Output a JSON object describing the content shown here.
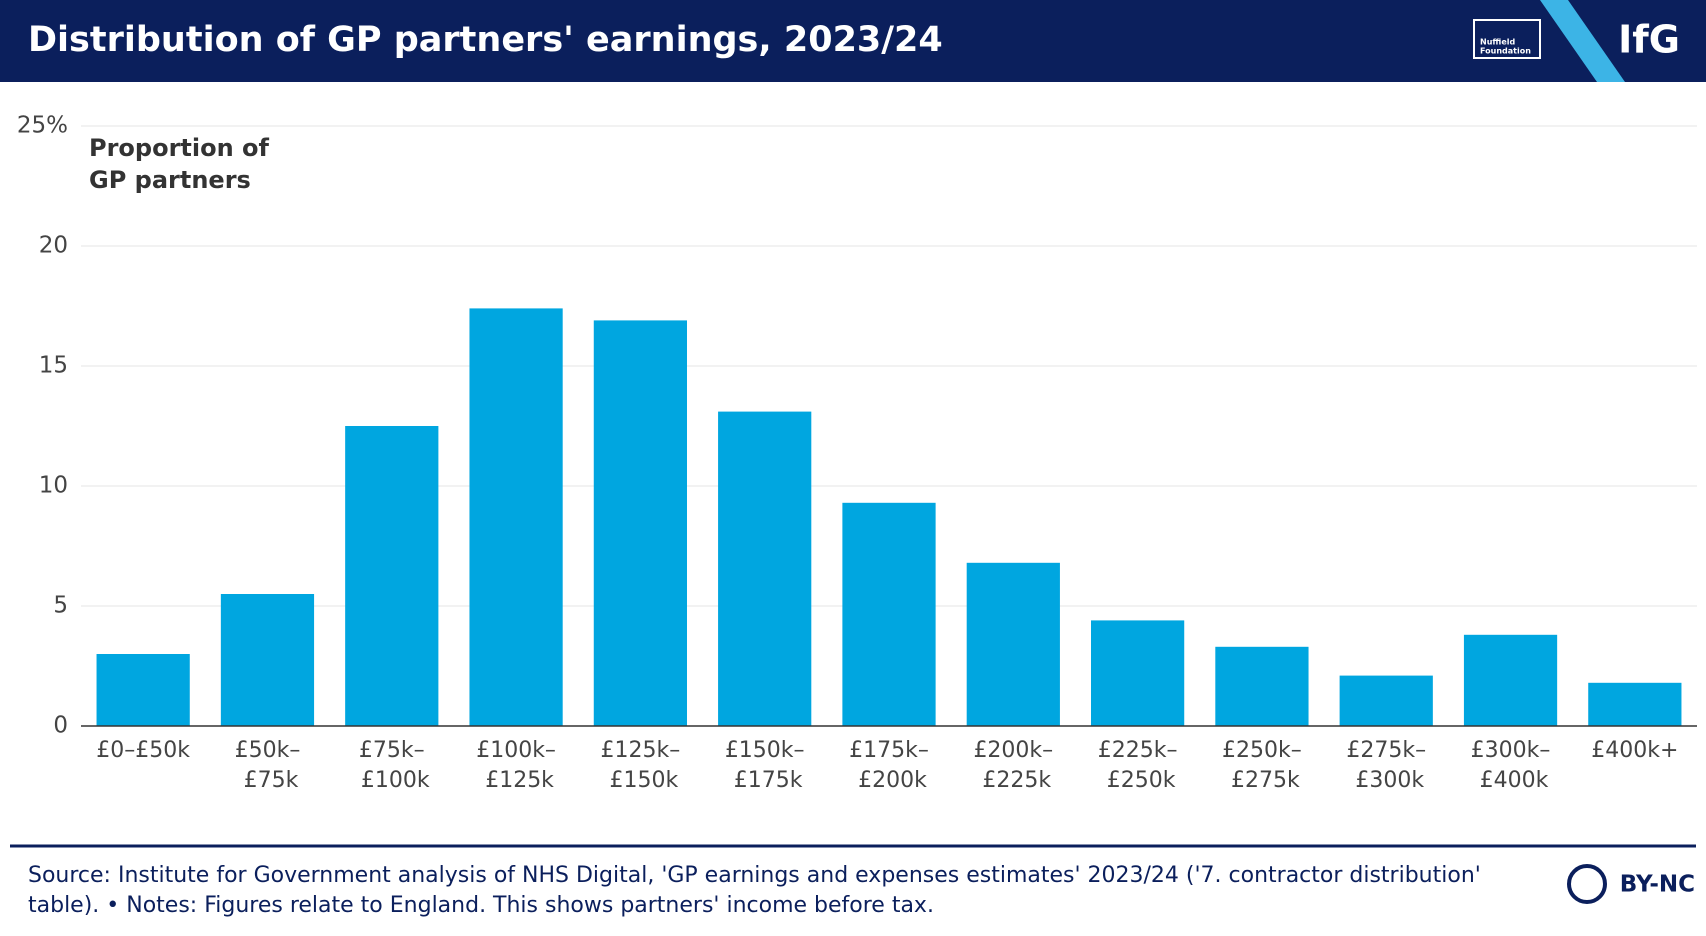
{
  "chart_data": {
    "type": "bar",
    "title": "Distribution of GP partners' earnings, 2023/24",
    "y_label": [
      "Proportion of",
      "GP partners"
    ],
    "categories": [
      "£0–£50k",
      "£50k– £75k",
      "£75k– £100k",
      "£100k– £125k",
      "£125k– £150k",
      "£150k– £175k",
      "£175k– £200k",
      "£200k– £225k",
      "£225k– £250k",
      "£250k– £275k",
      "£275k– £300k",
      "£300k– £400k",
      "£400k+"
    ],
    "values": [
      3.0,
      5.5,
      12.5,
      17.4,
      16.9,
      13.1,
      9.3,
      6.8,
      4.4,
      3.3,
      2.1,
      3.8,
      1.8
    ],
    "color": "#00a6e0",
    "ylim": [
      0,
      25
    ],
    "yticks": [
      0,
      5,
      10,
      15,
      20,
      {
        "value": 25,
        "label": "25%"
      }
    ],
    "grid": true
  },
  "header": {
    "logo_text": [
      "Nuffield",
      "Foundation"
    ],
    "brand": "IfG"
  },
  "footer": {
    "source": [
      "Source: Institute for Government analysis of NHS Digital, 'GP earnings and expenses estimates' 2023/24 ('7. contractor distribution'",
      "table). • Notes: Figures relate to England. This shows partners' income before tax."
    ],
    "license": "BY-NC"
  }
}
